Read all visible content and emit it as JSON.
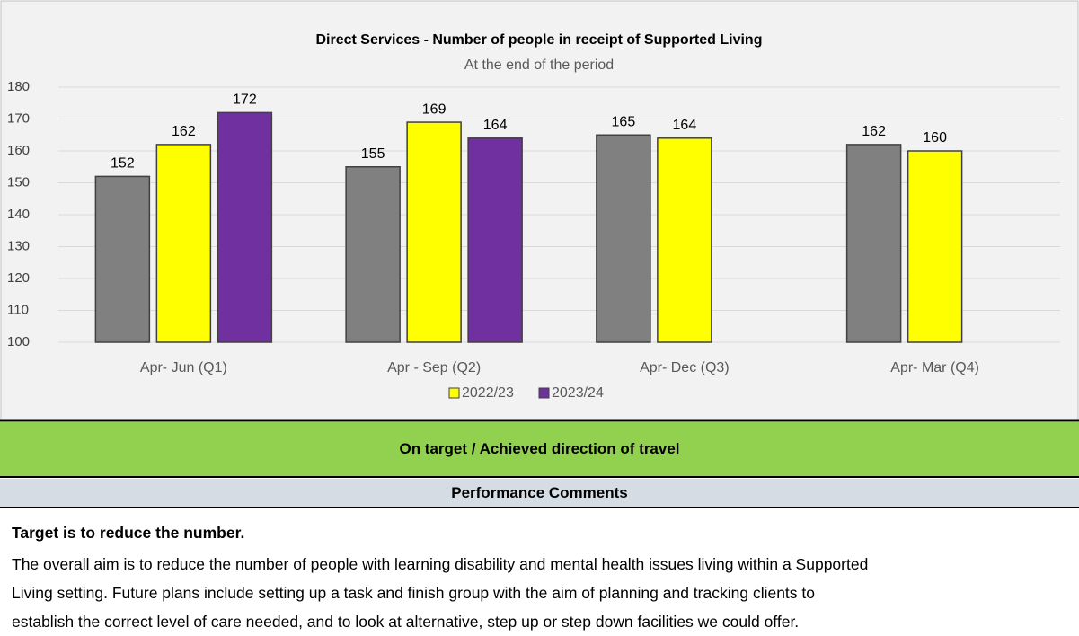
{
  "chart_data": {
    "type": "bar",
    "title": "Direct Services - Number of people in receipt of Supported Living",
    "subtitle": "At the end of the period",
    "categories": [
      "Apr- Jun  (Q1)",
      "Apr - Sep  (Q2)",
      "Apr- Dec  (Q3)",
      "Apr- Mar  (Q4)"
    ],
    "series": [
      {
        "color": "#808080",
        "values": [
          152,
          155,
          165,
          162
        ]
      },
      {
        "name": "2022/23",
        "color": "#ffff00",
        "values": [
          162,
          169,
          164,
          160
        ]
      },
      {
        "name": "2023/24",
        "color": "#7030a0",
        "values": [
          172,
          164,
          null,
          null
        ]
      }
    ],
    "ylim": [
      100,
      180
    ],
    "yticks": [
      100,
      110,
      120,
      130,
      140,
      150,
      160,
      170,
      180
    ],
    "grid": true,
    "legend": "bottom"
  },
  "status": "On target / Achieved direction of travel",
  "comments": {
    "header": "Performance Comments",
    "heading": "Target is to reduce the number.",
    "lines": [
      "The overall aim is to reduce the number of people with learning disability and mental health issues living within a Supported",
      "Living setting.  Future plans include setting up a task and finish group with the aim of planning and tracking clients to",
      "establish the correct level of care needed, and to look at alternative, step up or step down facilities we could offer."
    ]
  }
}
